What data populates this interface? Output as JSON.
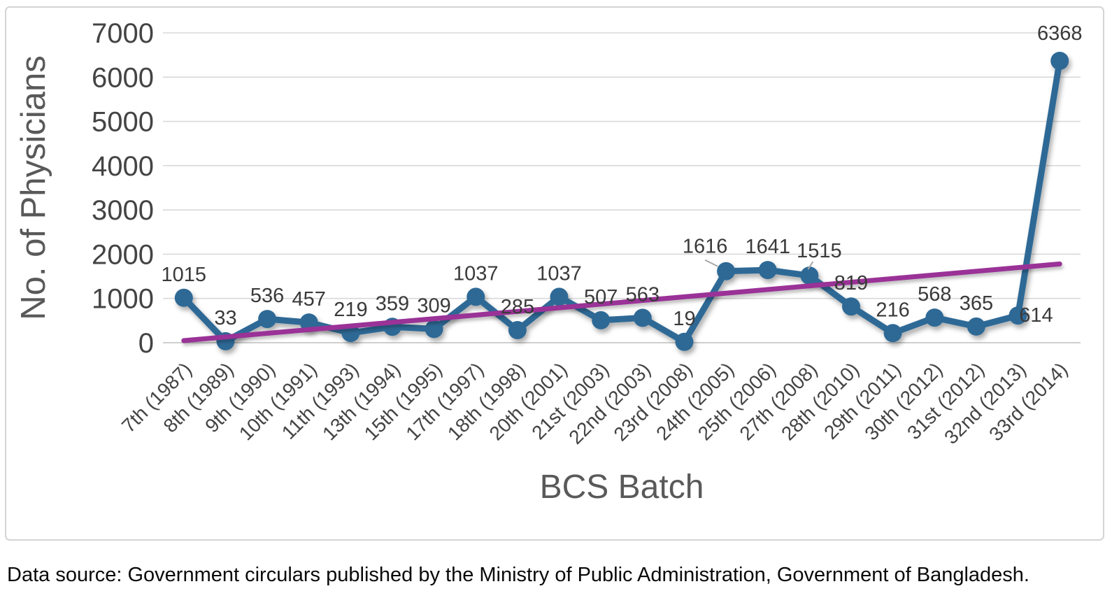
{
  "figure": {
    "caption": "Data source: Government circulars published by the Ministry of Public Administration, Government of Bangladesh."
  },
  "chart_data": {
    "type": "line",
    "title": "",
    "xlabel": "BCS Batch",
    "ylabel": "No. of Physicians",
    "categories": [
      "7th (1987)",
      "8th (1989)",
      "9th (1990)",
      "10th (1991)",
      "11th (1993)",
      "13th (1994)",
      "15th (1995)",
      "17th (1997)",
      "18th (1998)",
      "20th (2001)",
      "21st (2003)",
      "22nd (2003)",
      "23rd (2008)",
      "24th (2005)",
      "25th (2006)",
      "27th (2008)",
      "28th (2010)",
      "29th (2011)",
      "30th (2012)",
      "31st (2012)",
      "32nd (2013)",
      "33rd (2014)"
    ],
    "series": [
      {
        "name": "No. of Physicians",
        "values": [
          1015,
          33,
          536,
          457,
          219,
          359,
          309,
          1037,
          285,
          1037,
          507,
          563,
          19,
          1616,
          1641,
          1515,
          819,
          216,
          568,
          365,
          614,
          6368
        ]
      }
    ],
    "data_labels_shown": true,
    "ylim": [
      0,
      7000
    ],
    "yticks": [
      0,
      1000,
      2000,
      3000,
      4000,
      5000,
      6000,
      7000
    ],
    "grid": "horizontal",
    "legend": "none",
    "x_label_rotation_deg": -45,
    "trendline": {
      "type": "linear",
      "spans": "first-to-last-category"
    },
    "colors": {
      "series": "#2d6996",
      "trendline": "#9a3197",
      "gridline": "#d9d9d9",
      "axis_line": "#cfcfcf",
      "tick_text": "#444444",
      "axis_title": "#595959",
      "data_label": "#3a3a3a",
      "leader_line": "#a6a6a6",
      "frame_border": "#d4d4d4",
      "background": "#ffffff"
    },
    "label_overrides": {
      "13": {
        "dx": -30,
        "dy": -26,
        "leader": {
          "from": [
            -30,
            -16
          ],
          "to": [
            -12,
            -7
          ]
        }
      },
      "15": {
        "dx": 14,
        "dy": -26,
        "leader": {
          "from": [
            5,
            -20
          ],
          "to": [
            -2,
            -9
          ]
        }
      },
      "20": {
        "dx": 26,
        "dy": 9
      },
      "21": {
        "dy": -30
      }
    }
  }
}
